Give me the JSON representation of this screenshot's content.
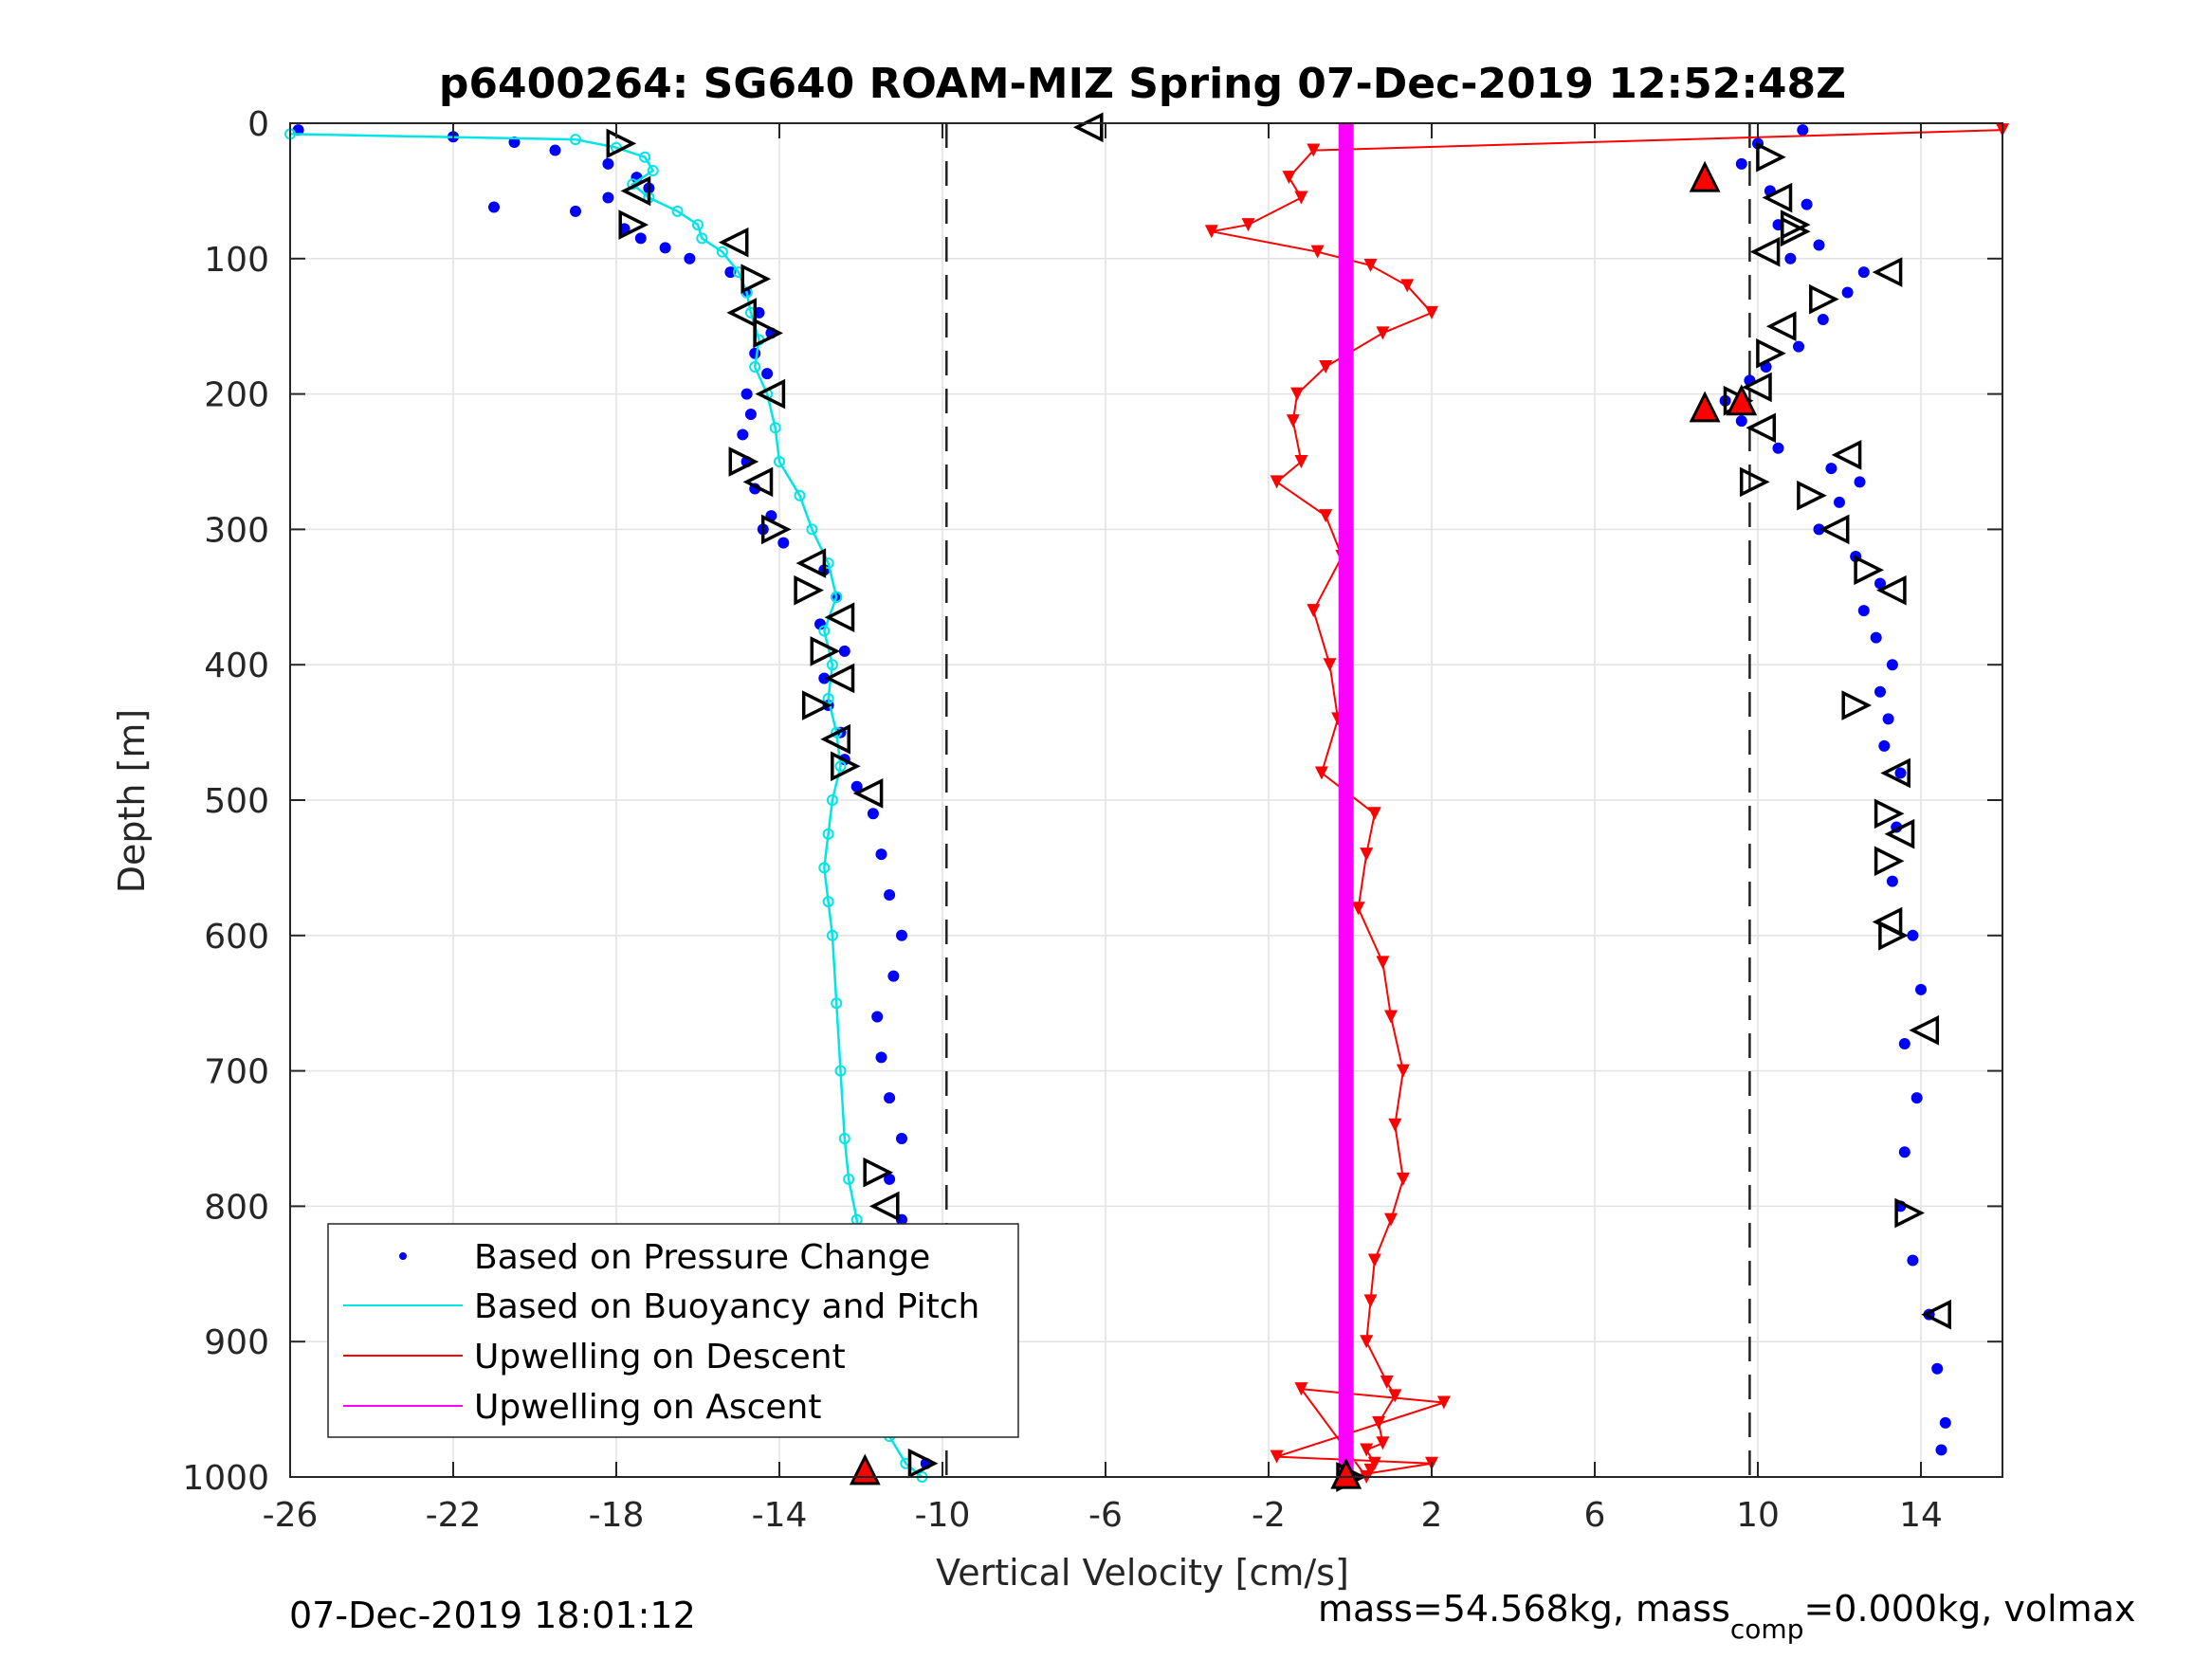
{
  "chart_data": {
    "type": "scatter",
    "title": "p6400264: SG640 ROAM-MIZ Spring 07-Dec-2019 12:52:48Z",
    "xlabel": "Vertical Velocity [cm/s]",
    "ylabel": "Depth [m]",
    "xlim": [
      -26,
      16
    ],
    "ylim": [
      0,
      1000
    ],
    "y_reversed": true,
    "grid": true,
    "legend_placement": "bottom-left",
    "x_ticks": [
      -26,
      -22,
      -18,
      -14,
      -10,
      -6,
      -2,
      2,
      6,
      10,
      14
    ],
    "x_tick_labels": [
      "-26",
      "-22",
      "-18",
      "-14",
      "-10",
      "-6",
      "-2",
      "2",
      "6",
      "10",
      "14"
    ],
    "y_ticks": [
      0,
      100,
      200,
      300,
      400,
      500,
      600,
      700,
      800,
      900,
      1000
    ],
    "y_tick_labels": [
      "0",
      "100",
      "200",
      "300",
      "400",
      "500",
      "600",
      "700",
      "800",
      "900",
      "1000"
    ],
    "reference_lines_x": [
      -9.9,
      9.8
    ],
    "colors": {
      "pressure": "#0000ff",
      "buoyancy": "#00e5e5",
      "descent": "#ff0000",
      "ascent": "#ff00ff",
      "grid": "#e2e2e2",
      "axis": "#262626"
    },
    "series": [
      {
        "name": "Based on Pressure Change",
        "style": "dots",
        "x": [
          -25.8,
          -22,
          -20.5,
          -19.5,
          -18.2,
          -17.5,
          -17.2,
          -18.2,
          -19,
          -21,
          -17.8,
          -17.4,
          -16.8,
          -16.2,
          -15.2,
          -14.8,
          -14.5,
          -14.2,
          -14.6,
          -14.3,
          -14.8,
          -14.7,
          -14.9,
          -14.8,
          -14.6,
          -14.2,
          -14.4,
          -13.9,
          -12.9,
          -12.6,
          -13.0,
          -12.4,
          -12.9,
          -12.8,
          -12.5,
          -12.4,
          -12.1,
          -11.7,
          -11.5,
          -11.3,
          -11.0,
          -11.2,
          -11.6,
          -11.5,
          -11.3,
          -11.0,
          -11.3,
          -11.0,
          -11.2,
          -10.7,
          -10.6,
          -10.4
        ],
        "y": [
          5,
          10,
          14,
          20,
          30,
          40,
          48,
          55,
          65,
          62,
          78,
          85,
          92,
          100,
          110,
          125,
          140,
          155,
          170,
          185,
          200,
          215,
          230,
          250,
          270,
          290,
          300,
          310,
          330,
          350,
          370,
          390,
          410,
          430,
          450,
          470,
          490,
          510,
          540,
          570,
          600,
          630,
          660,
          690,
          720,
          750,
          780,
          810,
          850,
          900,
          950,
          990
        ]
      },
      {
        "name": "",
        "style": "dots",
        "x": [
          11.1,
          10.0,
          9.6,
          10.3,
          11.2,
          10.5,
          11.5,
          10.8,
          12.6,
          12.2,
          11.6,
          11.0,
          10.2,
          9.8,
          9.2,
          9.6,
          10.5,
          11.8,
          12.5,
          12.0,
          11.5,
          12.4,
          13.0,
          12.6,
          12.9,
          13.3,
          13.0,
          13.2,
          13.1,
          13.5,
          13.4,
          13.3,
          13.8,
          14.0,
          13.6,
          13.9,
          13.6,
          13.5,
          13.8,
          14.2,
          14.4,
          14.6,
          14.5
        ],
        "y": [
          5,
          15,
          30,
          50,
          60,
          75,
          90,
          100,
          110,
          125,
          145,
          165,
          180,
          190,
          205,
          220,
          240,
          255,
          265,
          280,
          300,
          320,
          340,
          360,
          380,
          400,
          420,
          440,
          460,
          480,
          520,
          560,
          600,
          640,
          680,
          720,
          760,
          800,
          840,
          880,
          920,
          960,
          980
        ]
      },
      {
        "name": "Based on Buoyancy and Pitch",
        "style": "line",
        "x": [
          -26.0,
          -19.0,
          -18.0,
          -17.3,
          -17.1,
          -17.6,
          -17.2,
          -16.5,
          -16.0,
          -15.9,
          -15.4,
          -15.0,
          -14.8,
          -14.7,
          -14.5,
          -14.6,
          -14.3,
          -14.1,
          -14.0,
          -13.5,
          -13.2,
          -12.8,
          -12.6,
          -12.9,
          -12.7,
          -12.8,
          -12.6,
          -12.5,
          -12.7,
          -12.8,
          -12.9,
          -12.8,
          -12.7,
          -12.6,
          -12.5,
          -12.4,
          -12.3,
          -12.1,
          -12.0,
          -11.8,
          -11.6,
          -11.5,
          -11.3,
          -10.9,
          -10.5
        ],
        "y": [
          8,
          12,
          18,
          25,
          35,
          45,
          55,
          65,
          75,
          85,
          95,
          110,
          125,
          140,
          160,
          180,
          200,
          225,
          250,
          275,
          300,
          325,
          350,
          375,
          400,
          425,
          450,
          475,
          500,
          525,
          550,
          575,
          600,
          650,
          700,
          750,
          780,
          810,
          850,
          880,
          910,
          940,
          970,
          990,
          1000
        ]
      },
      {
        "name": "Upwelling on Descent",
        "style": "triangles",
        "x": [
          16.0,
          -0.9,
          -1.5,
          -1.2,
          -2.5,
          -3.4,
          -0.8,
          0.5,
          1.4,
          2.0,
          0.8,
          -0.6,
          -1.3,
          -1.4,
          -1.2,
          -1.8,
          -0.6,
          -0.2,
          -0.9,
          -0.5,
          -0.3,
          -0.7,
          0.6,
          0.4,
          0.2,
          0.8,
          1.0,
          1.3,
          1.1,
          1.3,
          1.0,
          0.6,
          0.5,
          0.4,
          0.9,
          1.1,
          0.7,
          0.8,
          0.4,
          0.6,
          0.5,
          0.4,
          -1.2,
          2.3,
          -1.8,
          2.0,
          -0.1
        ],
        "y": [
          5,
          20,
          40,
          55,
          75,
          80,
          95,
          105,
          120,
          140,
          155,
          180,
          200,
          220,
          250,
          265,
          290,
          320,
          360,
          400,
          440,
          480,
          510,
          540,
          580,
          620,
          660,
          700,
          740,
          780,
          810,
          840,
          870,
          900,
          930,
          940,
          960,
          975,
          980,
          990,
          995,
          1000,
          935,
          945,
          985,
          990,
          1000
        ]
      },
      {
        "name": "Upwelling on Ascent",
        "style": "thick-line",
        "x": [
          -0.1,
          -0.1
        ],
        "y": [
          0,
          1000
        ]
      },
      {
        "name": "",
        "style": "open-triangles",
        "x": [
          -17.9,
          -17.5,
          -17.6,
          -15.1,
          -14.6,
          -14.9,
          -14.3,
          -14.2,
          -14.9,
          -14.5,
          -14.1,
          -13.2,
          -13.3,
          -12.5,
          -12.9,
          -12.5,
          -13.1,
          -12.6,
          -12.4,
          -11.8,
          -11.6,
          -11.4,
          -11.2,
          -11.1,
          -11.0,
          -11.5,
          -10.5,
          -6.4,
          10.3,
          10.5,
          10.9,
          10.2,
          10.9,
          13.2,
          11.6,
          10.6,
          10.3,
          10.0,
          9.5,
          10.1,
          9.9,
          12.2,
          11.3,
          11.9,
          12.7,
          13.3,
          12.4,
          13.4,
          13.2,
          13.5,
          13.2,
          13.2,
          13.3,
          14.1,
          13.7,
          14.4,
          0.0
        ],
        "y": [
          15,
          50,
          75,
          88,
          115,
          140,
          155,
          200,
          250,
          265,
          300,
          325,
          345,
          365,
          390,
          410,
          430,
          455,
          475,
          495,
          775,
          800,
          840,
          880,
          895,
          930,
          990,
          3,
          25,
          55,
          75,
          95,
          80,
          110,
          130,
          150,
          170,
          195,
          205,
          225,
          265,
          245,
          275,
          300,
          330,
          345,
          430,
          480,
          510,
          525,
          545,
          590,
          600,
          670,
          805,
          880,
          1000
        ]
      },
      {
        "name": "",
        "style": "filled-triangles",
        "x": [
          8.7,
          9.6,
          8.7,
          -11.9,
          -0.1
        ],
        "y": [
          40,
          205,
          210,
          995,
          998
        ]
      }
    ]
  },
  "legend": {
    "entries": [
      {
        "label": "Based on Pressure Change"
      },
      {
        "label": "Based on Buoyancy and Pitch"
      },
      {
        "label": "Upwelling on Descent"
      },
      {
        "label": "Upwelling on Ascent"
      }
    ]
  },
  "footer": {
    "timestamp": "07-Dec-2019 18:01:12",
    "mass_prefix": "mass=54.568kg, mass",
    "mass_sub": "comp",
    "mass_suffix": "=0.000kg, volmax"
  }
}
